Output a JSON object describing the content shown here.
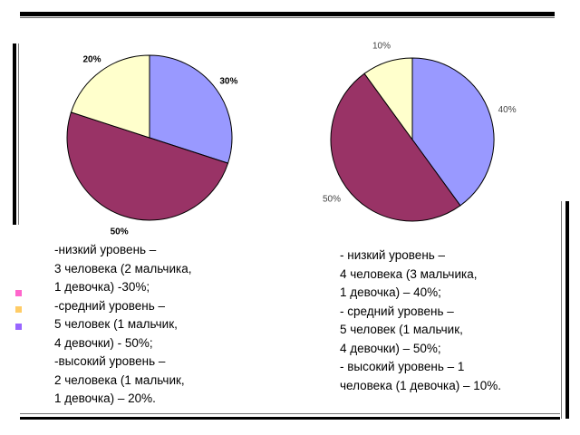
{
  "colors": {
    "slice_blue": "#9999ff",
    "slice_maroon": "#993366",
    "slice_cream": "#ffffcc",
    "frame": "#000000",
    "accent_pink": "#ff66cc",
    "accent_orange": "#ffcc66",
    "accent_purple": "#9966ff"
  },
  "chart_data": [
    {
      "type": "pie",
      "categories": [
        "низкий уровень",
        "средний уровень",
        "высокий уровень"
      ],
      "values": [
        30,
        50,
        20
      ],
      "data_labels": [
        "30%",
        "50%",
        "20%"
      ],
      "colors": [
        "#9999ff",
        "#993366",
        "#ffffcc"
      ],
      "title": ""
    },
    {
      "type": "pie",
      "categories": [
        "низкий уровень",
        "средний уровень",
        "высокий уровень"
      ],
      "values": [
        40,
        50,
        10
      ],
      "data_labels": [
        "40%",
        "50%",
        "10%"
      ],
      "colors": [
        "#9999ff",
        "#993366",
        "#ffffcc"
      ],
      "title": ""
    }
  ],
  "legend_left": [
    "-низкий уровень –",
    "3 человека (2 мальчика,",
    "1 девочка) -30%;",
    "-средний уровень –",
    "5 человек (1 мальчик,",
    "4 девочки) - 50%;",
    "-высокий уровень –",
    "2 человека (1 мальчик,",
    "1 девочка) – 20%."
  ],
  "legend_right": [
    "- низкий уровень –",
    "4 человека (3 мальчика,",
    "1 девочка) – 40%;",
    "- средний уровень –",
    "5 человек (1 мальчик,",
    "4 девочки) – 50%;",
    "- высокий уровень – 1",
    "человека (1 девочка) – 10%."
  ]
}
